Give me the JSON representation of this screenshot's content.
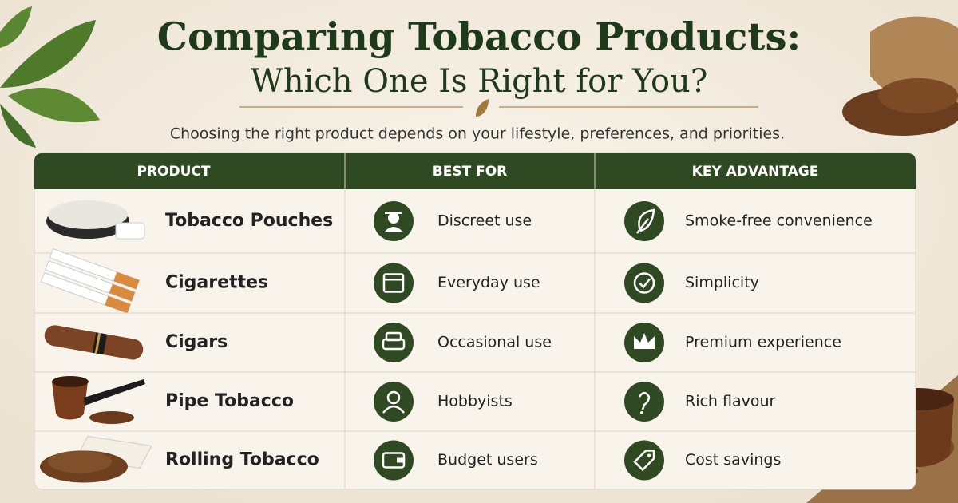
{
  "title": {
    "line1": "Comparing Tobacco Products:",
    "line2": "Which One Is Right for You?"
  },
  "subtitle": "Choosing the right product depends on your lifestyle, preferences, and priorities.",
  "table": {
    "headers": [
      "PRODUCT",
      "BEST FOR",
      "KEY ADVANTAGE"
    ],
    "rows": [
      [
        "Tobacco Pouches",
        "Discreet use",
        "Smoke-free convenience"
      ],
      [
        "Cigarettes",
        "Everyday use",
        "Simplicity"
      ],
      [
        "Cigars",
        "Occasional use",
        "Premium experience"
      ],
      [
        "Pipe Tobacco",
        "Hobbyists",
        "Rich flavour"
      ],
      [
        "Rolling Tobacco",
        "Budget users",
        "Cost savings"
      ]
    ]
  }
}
